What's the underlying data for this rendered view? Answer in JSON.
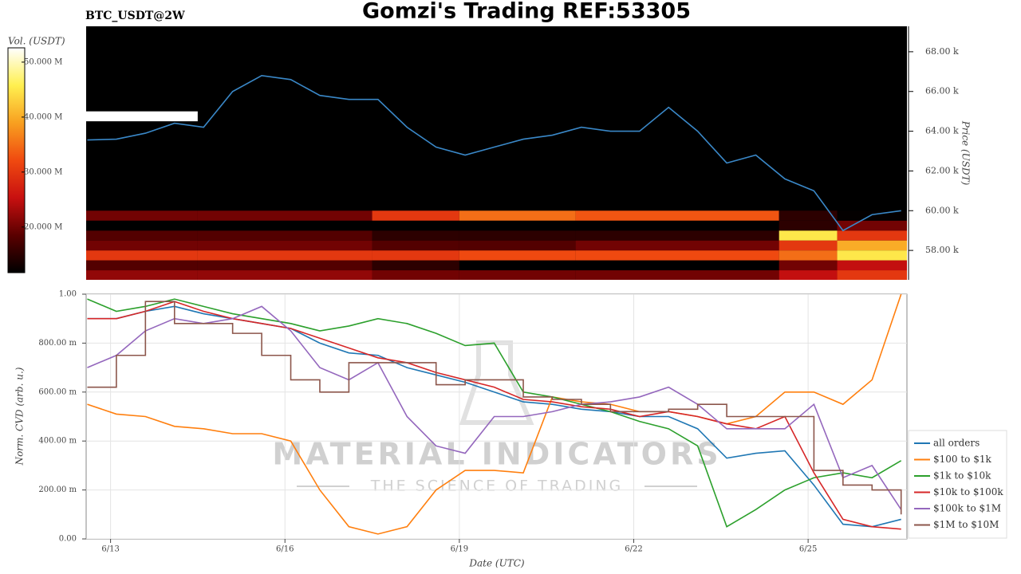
{
  "chart_data": [
    {
      "type": "heatmap",
      "title": "Gomzi's Trading REF:53305",
      "subtitle": "BTC_USDT@2W",
      "y2label": "Price (USDT)",
      "colorbar_label": "Vol. (USDT)",
      "xlim": [
        12.58,
        26.7
      ],
      "x_edges": [
        12.58,
        14.5,
        17.5,
        19.0,
        21.0,
        24.5,
        25.5,
        26.7
      ],
      "rows": [
        {
          "y": [
            56500,
            57000
          ],
          "z": [
            22000000,
            22000000,
            20000000,
            20000000,
            20000000,
            25000000,
            30000000
          ]
        },
        {
          "y": [
            57000,
            57500
          ],
          "z": [
            18000000,
            18000000,
            15000000,
            10000000,
            10000000,
            20000000,
            25000000
          ]
        },
        {
          "y": [
            57500,
            58000
          ],
          "z": [
            30000000,
            30000000,
            30000000,
            32000000,
            32000000,
            35000000,
            45000000
          ]
        },
        {
          "y": [
            58000,
            58500
          ],
          "z": [
            20000000,
            20000000,
            18000000,
            18000000,
            20000000,
            30000000,
            40000000
          ]
        },
        {
          "y": [
            58500,
            59000
          ],
          "z": [
            18000000,
            18000000,
            15000000,
            15000000,
            15000000,
            45000000,
            30000000
          ]
        },
        {
          "y": [
            59000,
            59500
          ],
          "z": [
            8000000,
            8000000,
            10000000,
            10000000,
            10000000,
            15000000,
            20000000
          ]
        },
        {
          "y": [
            59500,
            60000
          ],
          "z": [
            20000000,
            20000000,
            30000000,
            35000000,
            33000000,
            15000000,
            12000000
          ]
        },
        {
          "y": [
            61500,
            62000
          ],
          "z": [
            0,
            0,
            6000000,
            8000000,
            10000000,
            5000000,
            0
          ]
        },
        {
          "y": [
            62000,
            62500
          ],
          "z": [
            0,
            0,
            5000000,
            10000000,
            10000000,
            0,
            0
          ]
        },
        {
          "y": [
            64500,
            65000
          ],
          "z": [
            55000000,
            0,
            0,
            0,
            0,
            0,
            0
          ]
        },
        {
          "y": [
            67700,
            68200
          ],
          "z": [
            0,
            0,
            0,
            0,
            8000000,
            8000000,
            8000000
          ]
        }
      ],
      "zlim": [
        11700000,
        52600000
      ],
      "zticks": [
        {
          "value": 20000000,
          "label": "20.000 M"
        },
        {
          "value": 30000000,
          "label": "30.000 M"
        },
        {
          "value": 40000000,
          "label": "40.000 M"
        },
        {
          "value": 50000000,
          "label": "50.000 M"
        }
      ],
      "colorscale": [
        "#000000",
        "#5a0000",
        "#c81010",
        "#f04a10",
        "#f8a020",
        "#fff050",
        "#ffffff"
      ],
      "y2lim": [
        56520,
        69280
      ],
      "y2ticks": [
        {
          "value": 58000,
          "label": "58.00 k"
        },
        {
          "value": 60000,
          "label": "60.00 k"
        },
        {
          "value": 62000,
          "label": "62.00 k"
        },
        {
          "value": 64000,
          "label": "64.00 k"
        },
        {
          "value": 66000,
          "label": "66.00 k"
        },
        {
          "value": 68000,
          "label": "68.00 k"
        }
      ],
      "x": [
        12.6,
        13.1,
        13.6,
        14.1,
        14.6,
        15.1,
        15.6,
        16.1,
        16.6,
        17.1,
        17.6,
        18.1,
        18.6,
        19.1,
        19.6,
        20.1,
        20.6,
        21.1,
        21.6,
        22.1,
        22.6,
        23.1,
        23.6,
        24.1,
        24.6,
        25.1,
        25.6,
        26.1,
        26.6
      ],
      "series": [
        {
          "color": "#3a88c8",
          "values": [
            63560,
            63600,
            63900,
            64400,
            64200,
            66000,
            66800,
            66600,
            65800,
            65600,
            65600,
            64200,
            63200,
            62800,
            63200,
            63600,
            63800,
            64200,
            64000,
            64000,
            65200,
            64000,
            62400,
            62800,
            61600,
            61000,
            59000,
            59800,
            60000
          ]
        }
      ]
    },
    {
      "type": "line",
      "ylabel": "Norm. CVD (arb. u.)",
      "xlabel": "Date (UTC)",
      "xlim": [
        12.58,
        26.7
      ],
      "xticks": [
        {
          "value": 13,
          "label": "6/13"
        },
        {
          "value": 16,
          "label": "6/16"
        },
        {
          "value": 19,
          "label": "6/19"
        },
        {
          "value": 22,
          "label": "6/22"
        },
        {
          "value": 25,
          "label": "6/25"
        }
      ],
      "ylim": [
        0,
        1
      ],
      "yticks": [
        {
          "value": 0,
          "label": "0.00"
        },
        {
          "value": 0.2,
          "label": "200.00 m"
        },
        {
          "value": 0.4,
          "label": "400.00 m"
        },
        {
          "value": 0.6,
          "label": "600.00 m"
        },
        {
          "value": 0.8,
          "label": "800.00 m"
        },
        {
          "value": 1,
          "label": "1.00"
        }
      ],
      "grid": true,
      "legend": "right",
      "watermark": {
        "title": "MATERIAL INDICATORS",
        "subtitle": "THE SCIENCE OF TRADING"
      },
      "x": [
        12.6,
        13.1,
        13.6,
        14.1,
        14.6,
        15.1,
        15.6,
        16.1,
        16.6,
        17.1,
        17.6,
        18.1,
        18.6,
        19.1,
        19.6,
        20.1,
        20.6,
        21.1,
        21.6,
        22.1,
        22.6,
        23.1,
        23.6,
        24.1,
        24.6,
        25.1,
        25.6,
        26.1,
        26.6
      ],
      "series": [
        {
          "name": "all orders",
          "color": "#1f77b4",
          "values": [
            0.9,
            0.9,
            0.93,
            0.95,
            0.92,
            0.9,
            0.88,
            0.86,
            0.8,
            0.76,
            0.75,
            0.7,
            0.67,
            0.64,
            0.6,
            0.56,
            0.55,
            0.53,
            0.52,
            0.5,
            0.5,
            0.45,
            0.33,
            0.35,
            0.36,
            0.22,
            0.06,
            0.05,
            0.08
          ]
        },
        {
          "name": "$100 to $1k",
          "color": "#ff7f0e",
          "values": [
            0.55,
            0.51,
            0.5,
            0.46,
            0.45,
            0.43,
            0.43,
            0.4,
            0.2,
            0.05,
            0.02,
            0.05,
            0.2,
            0.28,
            0.28,
            0.27,
            0.58,
            0.56,
            0.55,
            0.52,
            0.52,
            0.5,
            0.47,
            0.5,
            0.6,
            0.6,
            0.55,
            0.65,
            1.0
          ]
        },
        {
          "name": "$1k to $10k",
          "color": "#2ca02c",
          "values": [
            0.98,
            0.93,
            0.95,
            0.98,
            0.95,
            0.92,
            0.9,
            0.88,
            0.85,
            0.87,
            0.9,
            0.88,
            0.84,
            0.79,
            0.8,
            0.6,
            0.58,
            0.55,
            0.52,
            0.48,
            0.45,
            0.38,
            0.05,
            0.12,
            0.2,
            0.25,
            0.27,
            0.25,
            0.32
          ]
        },
        {
          "name": "$10k to $100k",
          "color": "#d62728",
          "values": [
            0.9,
            0.9,
            0.93,
            0.97,
            0.93,
            0.9,
            0.88,
            0.86,
            0.82,
            0.78,
            0.74,
            0.72,
            0.68,
            0.65,
            0.62,
            0.57,
            0.56,
            0.54,
            0.53,
            0.5,
            0.52,
            0.5,
            0.47,
            0.45,
            0.5,
            0.27,
            0.08,
            0.05,
            0.04
          ]
        },
        {
          "name": "$100k to $1M",
          "color": "#9467bd",
          "values": [
            0.7,
            0.75,
            0.85,
            0.9,
            0.88,
            0.9,
            0.95,
            0.85,
            0.7,
            0.65,
            0.72,
            0.5,
            0.38,
            0.35,
            0.5,
            0.5,
            0.52,
            0.55,
            0.56,
            0.58,
            0.62,
            0.55,
            0.45,
            0.45,
            0.45,
            0.55,
            0.25,
            0.3,
            0.12
          ]
        },
        {
          "name": "$1M to $10M",
          "color": "#8c564b",
          "shape": "hv",
          "values": [
            0.62,
            0.75,
            0.97,
            0.88,
            0.88,
            0.84,
            0.75,
            0.65,
            0.6,
            0.72,
            0.72,
            0.72,
            0.63,
            0.65,
            0.65,
            0.58,
            0.57,
            0.55,
            0.52,
            0.52,
            0.53,
            0.55,
            0.5,
            0.5,
            0.5,
            0.28,
            0.22,
            0.2,
            0.1
          ]
        }
      ]
    }
  ]
}
